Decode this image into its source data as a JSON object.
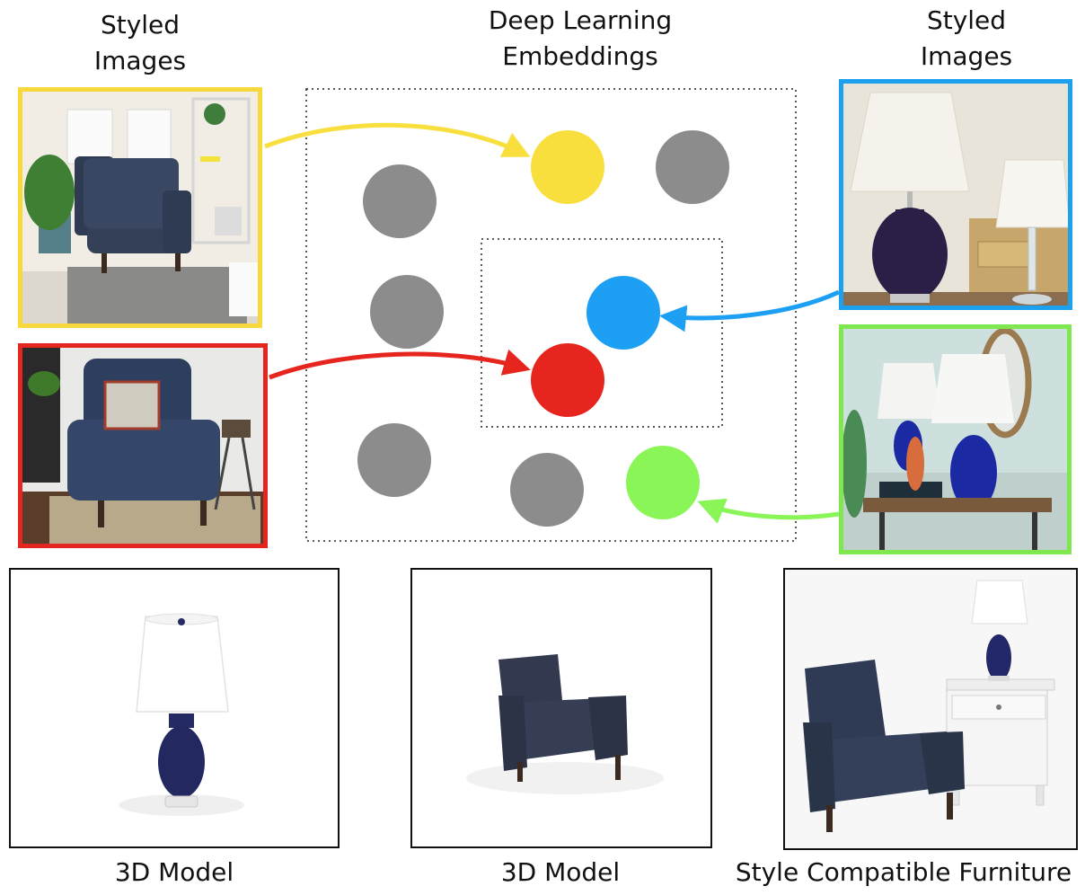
{
  "labels": {
    "left_styled": "Styled\nImages",
    "center": "Deep Learning\nEmbeddings",
    "right_styled": "Styled\nImages",
    "model_lamp": "3D Model",
    "model_chair": "3D Model",
    "compatible": "Style Compatible Furniture"
  },
  "photos": {
    "chair_living_room": {
      "border_color": "#f8d83a",
      "icon": "armchair-living-room-photo"
    },
    "chair_cushion": {
      "border_color": "#e5251f",
      "icon": "armchair-with-pillow-photo"
    },
    "lamps_pair": {
      "border_color": "#1da0ee",
      "icon": "table-lamps-photo"
    },
    "lamps_side_table": {
      "border_color": "#7fe850",
      "icon": "lamps-on-side-table-photo"
    }
  },
  "embedding_colors": {
    "yellow": "#f8df3e",
    "red": "#e7251f",
    "blue": "#1d9ff3",
    "green": "#8af556",
    "gray": "#8c8c8c"
  },
  "renders": {
    "lamp": {
      "icon": "lamp-3d-render"
    },
    "chair": {
      "icon": "armchair-3d-render"
    },
    "combo": {
      "icon": "chair-lamp-nightstand-render"
    }
  }
}
